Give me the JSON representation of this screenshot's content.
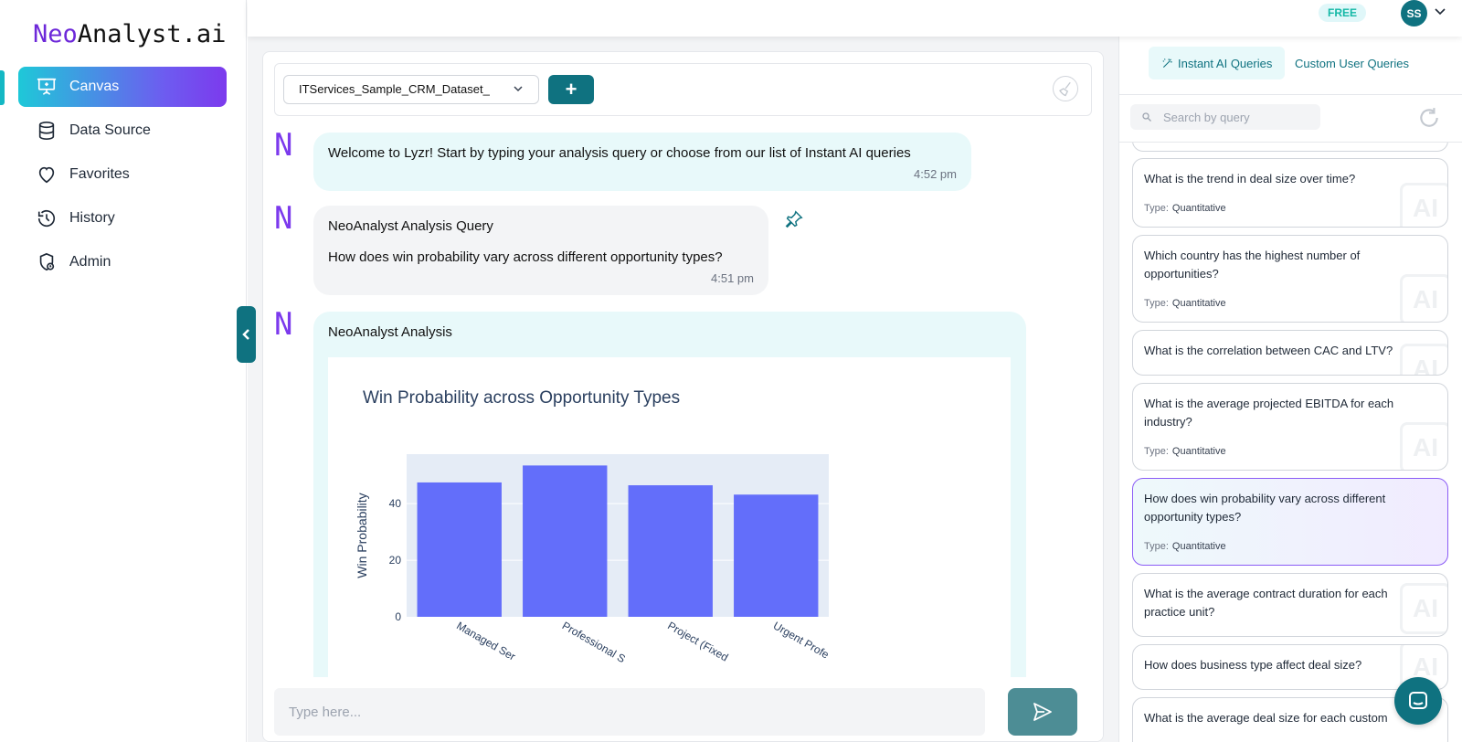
{
  "app": {
    "logo_prefix": "Neo",
    "logo_suffix": "Analyst.ai"
  },
  "sidebar": {
    "items": [
      {
        "label": "Canvas",
        "icon": "presentation-icon",
        "active": true
      },
      {
        "label": "Data Source",
        "icon": "database-icon"
      },
      {
        "label": "Favorites",
        "icon": "heart-icon"
      },
      {
        "label": "History",
        "icon": "history-icon"
      },
      {
        "label": "Admin",
        "icon": "admin-shield-icon"
      }
    ]
  },
  "header": {
    "plan_badge": "FREE",
    "avatar_initials": "SS"
  },
  "toolbar": {
    "dataset_value": "ITServices_Sample_CRM_Dataset_",
    "add_label": "+"
  },
  "chat": {
    "avatar_letter": "N",
    "messages": [
      {
        "text": "Welcome to Lyzr! Start by typing your analysis query or choose from our list of Instant AI queries",
        "time": "4:52 pm"
      },
      {
        "title": "NeoAnalyst Analysis Query",
        "text": "How does win probability vary across different opportunity types?",
        "time": "4:51 pm"
      },
      {
        "title": "NeoAnalyst Analysis"
      }
    ],
    "input_placeholder": "Type here..."
  },
  "chart_data": {
    "type": "bar",
    "title": "Win Probability across Opportunity Types",
    "ylabel": "Win Probability",
    "xlabel": "",
    "categories": [
      "Managed Ser",
      "Professional S",
      "Project (Fixed",
      "Urgent Profe"
    ],
    "values": [
      47.5,
      53.5,
      46.5,
      43.2
    ],
    "ylim": [
      0,
      57.5
    ],
    "yticks": [
      0,
      20,
      40
    ],
    "bar_color": "#636efa",
    "plot_bg": "#e5ecf6",
    "grid": true
  },
  "right_panel": {
    "tabs": [
      {
        "label": "Instant AI Queries",
        "active": true
      },
      {
        "label": "Custom User Queries"
      }
    ],
    "search_placeholder": "Search by query",
    "type_label": "Type:",
    "queries": [
      {
        "text": "What is the trend in deal size over time?",
        "type": "Quantitative"
      },
      {
        "text": "Which country has the highest number of opportunities?",
        "type": "Quantitative"
      },
      {
        "text": "What is the correlation between CAC and LTV?",
        "type": ""
      },
      {
        "text": "What is the average projected EBITDA for each industry?",
        "type": "Quantitative"
      },
      {
        "text": "How does win probability vary across different opportunity types?",
        "type": "Quantitative",
        "selected": true
      },
      {
        "text": "What is the average contract duration for each practice unit?",
        "type": ""
      },
      {
        "text": "How does business type affect deal size?",
        "type": ""
      },
      {
        "text": "What is the average deal size for each custom",
        "type": ""
      }
    ],
    "ai_watermark": "AI"
  },
  "colors": {
    "primary": "#0f7280",
    "accent_purple": "#7c3aed",
    "cyan": "#14b8c4"
  }
}
